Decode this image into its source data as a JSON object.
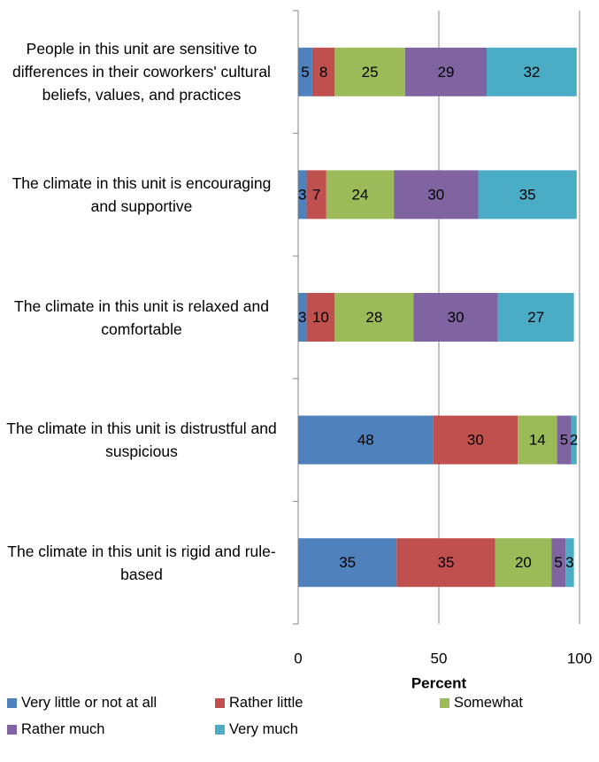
{
  "chart_data": {
    "type": "stacked_barh",
    "categories": [
      "People in this unit are sensitive to differences in their coworkers' cultural beliefs, values, and practices",
      "The climate in this unit is encouraging and supportive",
      "The climate in this unit is relaxed and comfortable",
      "The climate in this unit is distrustful and suspicious",
      "The climate in this unit is rigid and rule-based"
    ],
    "series": [
      {
        "name": "Very little or not at all",
        "color": "#4f81bd",
        "values": [
          5,
          3,
          3,
          48,
          35
        ]
      },
      {
        "name": "Rather little",
        "color": "#c0504d",
        "values": [
          8,
          7,
          10,
          30,
          35
        ]
      },
      {
        "name": "Somewhat",
        "color": "#9bbb59",
        "values": [
          25,
          24,
          28,
          14,
          20
        ]
      },
      {
        "name": "Rather much",
        "color": "#8064a2",
        "values": [
          29,
          30,
          30,
          5,
          5
        ]
      },
      {
        "name": "Very much",
        "color": "#4bacc6",
        "values": [
          32,
          35,
          27,
          2,
          3
        ]
      }
    ],
    "xlabel": "Percent",
    "xlim": [
      0,
      100
    ],
    "xticks": [
      0,
      50,
      100
    ],
    "grid": true
  }
}
